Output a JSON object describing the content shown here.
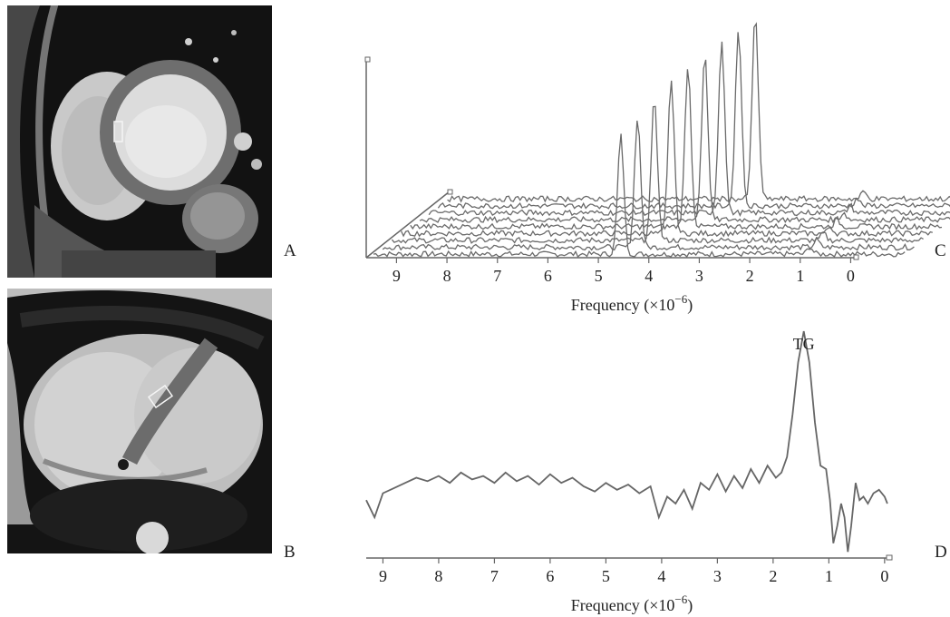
{
  "panels": {
    "a": {
      "letter": "A"
    },
    "b": {
      "letter": "B"
    },
    "c": {
      "letter": "C"
    },
    "d": {
      "letter": "D"
    }
  },
  "chart_data": [
    {
      "type": "line",
      "panel": "C",
      "xlabel": "Frequency (×10",
      "xlabel_exp": "−6",
      "xlabel_close": ")",
      "x_ticks": [
        "9",
        "8",
        "7",
        "6",
        "5",
        "4",
        "3",
        "2",
        "1",
        "0"
      ],
      "xlim": [
        9.6,
        -0.1
      ],
      "reversed_x": true,
      "layout": "stacked-3d",
      "series_count": 9,
      "peak_ppm": 4.7,
      "peak_shift_per_series": -0.15,
      "peak_relative_heights": [
        0.72,
        0.77,
        0.82,
        0.87,
        0.9,
        0.92,
        0.95,
        0.97,
        1.0
      ]
    },
    {
      "type": "line",
      "panel": "D",
      "xlabel": "Frequency (×10",
      "xlabel_exp": "−6",
      "xlabel_close": ")",
      "x_ticks": [
        "9",
        "8",
        "7",
        "6",
        "5",
        "4",
        "3",
        "2",
        "1",
        "0"
      ],
      "xlim": [
        9.3,
        -0.1
      ],
      "reversed_x": true,
      "annotation": {
        "text": "TG",
        "ppm": 1.45
      },
      "series": [
        {
          "points": [
            [
              9.3,
              0.2
            ],
            [
              9.15,
              0.1
            ],
            [
              9.0,
              0.24
            ],
            [
              8.8,
              0.27
            ],
            [
              8.6,
              0.3
            ],
            [
              8.4,
              0.33
            ],
            [
              8.2,
              0.31
            ],
            [
              8.0,
              0.34
            ],
            [
              7.8,
              0.3
            ],
            [
              7.6,
              0.36
            ],
            [
              7.4,
              0.32
            ],
            [
              7.2,
              0.34
            ],
            [
              7.0,
              0.3
            ],
            [
              6.8,
              0.36
            ],
            [
              6.6,
              0.31
            ],
            [
              6.4,
              0.34
            ],
            [
              6.2,
              0.29
            ],
            [
              6.0,
              0.35
            ],
            [
              5.8,
              0.3
            ],
            [
              5.6,
              0.33
            ],
            [
              5.4,
              0.28
            ],
            [
              5.2,
              0.25
            ],
            [
              5.0,
              0.3
            ],
            [
              4.8,
              0.26
            ],
            [
              4.6,
              0.29
            ],
            [
              4.4,
              0.24
            ],
            [
              4.2,
              0.28
            ],
            [
              4.05,
              0.1
            ],
            [
              3.9,
              0.22
            ],
            [
              3.75,
              0.18
            ],
            [
              3.6,
              0.26
            ],
            [
              3.45,
              0.15
            ],
            [
              3.3,
              0.3
            ],
            [
              3.15,
              0.26
            ],
            [
              3.0,
              0.35
            ],
            [
              2.85,
              0.25
            ],
            [
              2.7,
              0.34
            ],
            [
              2.55,
              0.27
            ],
            [
              2.4,
              0.38
            ],
            [
              2.25,
              0.3
            ],
            [
              2.1,
              0.4
            ],
            [
              1.95,
              0.33
            ],
            [
              1.85,
              0.36
            ],
            [
              1.75,
              0.45
            ],
            [
              1.65,
              0.7
            ],
            [
              1.55,
              1.0
            ],
            [
              1.45,
              1.18
            ],
            [
              1.35,
              1.0
            ],
            [
              1.25,
              0.65
            ],
            [
              1.15,
              0.4
            ],
            [
              1.05,
              0.38
            ],
            [
              0.98,
              0.2
            ],
            [
              0.92,
              -0.05
            ],
            [
              0.85,
              0.05
            ],
            [
              0.78,
              0.18
            ],
            [
              0.72,
              0.1
            ],
            [
              0.66,
              -0.1
            ],
            [
              0.6,
              0.05
            ],
            [
              0.52,
              0.3
            ],
            [
              0.45,
              0.2
            ],
            [
              0.38,
              0.22
            ],
            [
              0.3,
              0.18
            ],
            [
              0.2,
              0.24
            ],
            [
              0.1,
              0.26
            ],
            [
              0.0,
              0.22
            ],
            [
              -0.05,
              0.18
            ]
          ]
        }
      ]
    }
  ]
}
